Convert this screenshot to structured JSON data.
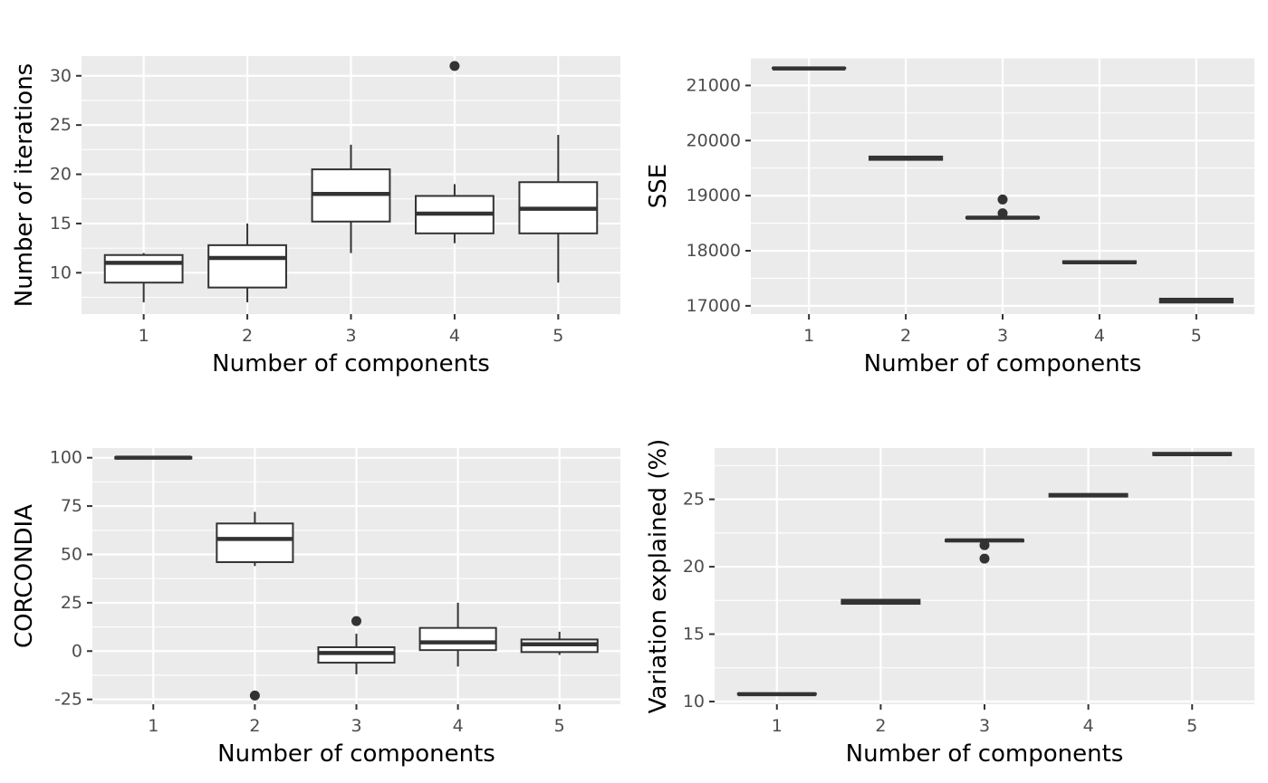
{
  "colors": {
    "panel_bg": "#ebebeb",
    "grid": "#ffffff",
    "box_line": "#333333",
    "box_fill": "#ffffff",
    "tick_text": "#4d4d4d",
    "tick_mark": "#333333"
  },
  "chart_data": [
    {
      "type": "boxplot",
      "xlabel": "Number of components",
      "ylabel": "Number of iterations",
      "categories": [
        "1",
        "2",
        "3",
        "4",
        "5"
      ],
      "yticks": [
        10,
        15,
        20,
        25,
        30
      ],
      "yticklabels": [
        "10",
        "15",
        "20",
        "25",
        "30"
      ],
      "ylim": [
        5.8,
        32.0
      ],
      "grid": true,
      "boxes": [
        {
          "x": "1",
          "whisker_low": 7,
          "q1": 9,
          "median": 11,
          "q3": 11.8,
          "whisker_high": 12,
          "outliers": []
        },
        {
          "x": "2",
          "whisker_low": 7,
          "q1": 8.5,
          "median": 11.5,
          "q3": 12.8,
          "whisker_high": 15,
          "outliers": []
        },
        {
          "x": "3",
          "whisker_low": 12,
          "q1": 15.2,
          "median": 18,
          "q3": 20.5,
          "whisker_high": 23,
          "outliers": []
        },
        {
          "x": "4",
          "whisker_low": 13,
          "q1": 14,
          "median": 16,
          "q3": 17.8,
          "whisker_high": 19,
          "outliers": [
            31
          ]
        },
        {
          "x": "5",
          "whisker_low": 9,
          "q1": 14,
          "median": 16.5,
          "q3": 19.2,
          "whisker_high": 24,
          "outliers": []
        }
      ]
    },
    {
      "type": "boxplot",
      "xlabel": "Number of components",
      "ylabel": "SSE",
      "categories": [
        "1",
        "2",
        "3",
        "4",
        "5"
      ],
      "yticks": [
        17000,
        18000,
        19000,
        20000,
        21000
      ],
      "yticklabels": [
        "17000",
        "18000",
        "19000",
        "20000",
        "21000"
      ],
      "ylim": [
        16850,
        21500
      ],
      "grid": true,
      "boxes": [
        {
          "x": "1",
          "whisker_low": 21310,
          "q1": 21310,
          "median": 21310,
          "q3": 21320,
          "whisker_high": 21320,
          "outliers": []
        },
        {
          "x": "2",
          "whisker_low": 19650,
          "q1": 19650,
          "median": 19680,
          "q3": 19710,
          "whisker_high": 19710,
          "outliers": []
        },
        {
          "x": "3",
          "whisker_low": 18590,
          "q1": 18590,
          "median": 18600,
          "q3": 18610,
          "whisker_high": 18610,
          "outliers": [
            18930,
            18680
          ]
        },
        {
          "x": "4",
          "whisker_low": 17775,
          "q1": 17775,
          "median": 17790,
          "q3": 17810,
          "whisker_high": 17825,
          "outliers": []
        },
        {
          "x": "5",
          "whisker_low": 17060,
          "q1": 17060,
          "median": 17100,
          "q3": 17130,
          "whisker_high": 17130,
          "outliers": []
        }
      ]
    },
    {
      "type": "boxplot",
      "xlabel": "Number of components",
      "ylabel": "CORCONDIA",
      "categories": [
        "1",
        "2",
        "3",
        "4",
        "5"
      ],
      "yticks": [
        -25,
        0,
        25,
        50,
        75,
        100
      ],
      "yticklabels": [
        "-25",
        "0",
        "25",
        "50",
        "75",
        "100"
      ],
      "ylim": [
        -27.5,
        105
      ],
      "grid": true,
      "boxes": [
        {
          "x": "1",
          "whisker_low": 99.5,
          "q1": 99.6,
          "median": 100,
          "q3": 100.3,
          "whisker_high": 100.5,
          "outliers": []
        },
        {
          "x": "2",
          "whisker_low": 44,
          "q1": 46,
          "median": 58,
          "q3": 66,
          "whisker_high": 72,
          "outliers": [
            -23
          ]
        },
        {
          "x": "3",
          "whisker_low": -12,
          "q1": -6,
          "median": -1,
          "q3": 2,
          "whisker_high": 9,
          "outliers": [
            15.5
          ]
        },
        {
          "x": "4",
          "whisker_low": -8,
          "q1": 0.5,
          "median": 4.5,
          "q3": 12,
          "whisker_high": 25,
          "outliers": []
        },
        {
          "x": "5",
          "whisker_low": -2,
          "q1": -0.5,
          "median": 3.5,
          "q3": 6,
          "whisker_high": 10,
          "outliers": []
        }
      ]
    },
    {
      "type": "boxplot",
      "xlabel": "Number of components",
      "ylabel": "Variation explained (%)",
      "categories": [
        "1",
        "2",
        "3",
        "4",
        "5"
      ],
      "yticks": [
        10,
        15,
        20,
        25
      ],
      "yticklabels": [
        "10",
        "15",
        "20",
        "25"
      ],
      "ylim": [
        9.8,
        28.8
      ],
      "grid": true,
      "boxes": [
        {
          "x": "1",
          "whisker_low": 10.5,
          "q1": 10.52,
          "median": 10.55,
          "q3": 10.6,
          "whisker_high": 10.62,
          "outliers": []
        },
        {
          "x": "2",
          "whisker_low": 17.2,
          "q1": 17.25,
          "median": 17.4,
          "q3": 17.55,
          "whisker_high": 17.6,
          "outliers": []
        },
        {
          "x": "3",
          "whisker_low": 21.85,
          "q1": 21.88,
          "median": 21.95,
          "q3": 22.0,
          "whisker_high": 22.02,
          "outliers": [
            21.6,
            20.6
          ]
        },
        {
          "x": "4",
          "whisker_low": 25.15,
          "q1": 25.2,
          "median": 25.3,
          "q3": 25.4,
          "whisker_high": 25.42,
          "outliers": []
        },
        {
          "x": "5",
          "whisker_low": 28.25,
          "q1": 28.28,
          "median": 28.35,
          "q3": 28.45,
          "whisker_high": 28.5,
          "outliers": []
        }
      ]
    }
  ]
}
